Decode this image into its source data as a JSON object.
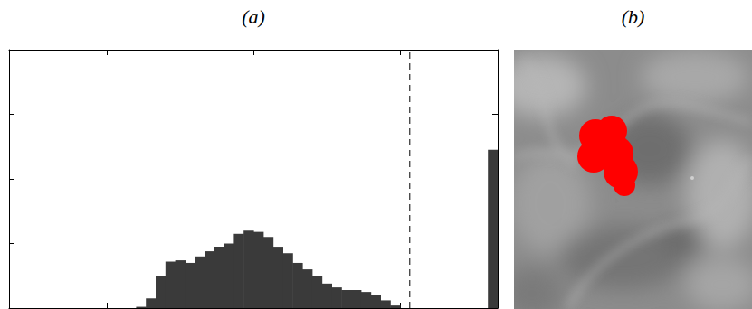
{
  "labels": [
    "(a)",
    "(b)"
  ],
  "chart_data": {
    "type": "histogram",
    "bins": [
      0.26,
      0.28,
      0.3,
      0.32,
      0.34,
      0.36,
      0.38,
      0.4,
      0.42,
      0.44,
      0.46,
      0.48,
      0.5,
      0.52,
      0.54,
      0.56,
      0.58,
      0.6,
      0.62,
      0.64,
      0.66,
      0.68,
      0.7,
      0.72,
      0.74,
      0.76,
      0.78,
      0.8,
      0.82,
      0.84,
      0.86,
      0.88,
      0.9,
      0.92,
      0.94,
      0.96,
      0.98,
      1.0
    ],
    "counts": [
      0.02,
      0.15,
      0.5,
      0.72,
      0.74,
      0.7,
      0.8,
      0.88,
      0.95,
      1.0,
      1.15,
      1.2,
      1.18,
      1.1,
      0.95,
      0.85,
      0.7,
      0.6,
      0.5,
      0.38,
      0.32,
      0.28,
      0.28,
      0.25,
      0.2,
      0.12,
      0.04,
      0,
      0,
      0,
      0,
      0,
      0,
      0,
      0,
      0,
      2.45
    ],
    "color": "#3a3a3a",
    "xlim": [
      0,
      1
    ],
    "ylim": [
      0,
      4
    ],
    "xticks": [
      0.2,
      0.5,
      0.8
    ],
    "yticks": [
      0,
      1,
      2,
      3,
      4
    ],
    "tick_labels": false,
    "threshold": {
      "value": 0.82,
      "line_style": "dashed"
    }
  }
}
